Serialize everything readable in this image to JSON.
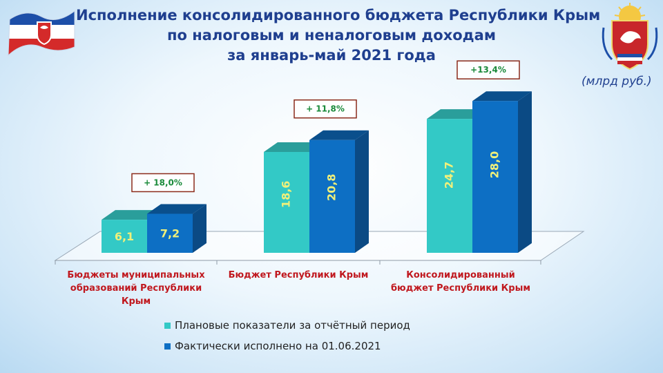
{
  "header": {
    "title_lines": [
      "Исполнение консолидированного бюджета Республики Крым",
      "по налоговым и неналоговым доходам",
      "за январь-май 2021 года"
    ],
    "unit": "(млрд руб.)"
  },
  "colors": {
    "plan": "#33c9c6",
    "plan_top": "#2a9e9b",
    "fact": "#0d6fc4",
    "fact_top": "#0a4f8c",
    "fact_side": "#0b4a84",
    "value_text": "#f0f07a",
    "category_text": "#c0181e",
    "growth_text": "#1a8a3a",
    "growth_border": "#8b2a1a"
  },
  "chart_data": {
    "type": "bar",
    "categories": [
      [
        "Бюджеты муниципальных",
        "образований Республики",
        "Крым"
      ],
      [
        "Бюджет Республики Крым"
      ],
      [
        "Консолидированный",
        "бюджет Республики Крым"
      ]
    ],
    "series": [
      {
        "name": "Плановые показатели за отчётный период",
        "values": [
          6.1,
          18.6,
          24.7
        ],
        "labels": [
          "6,1",
          "18,6",
          "24,7"
        ]
      },
      {
        "name": "Фактически исполнено на 01.06.2021",
        "values": [
          7.2,
          20.8,
          28.0
        ],
        "labels": [
          "7,2",
          "20,8",
          "28,0"
        ]
      }
    ],
    "growth_labels": [
      "+ 18,0%",
      "+ 11,8%",
      "+13,4%"
    ],
    "legend_position": "bottom"
  }
}
